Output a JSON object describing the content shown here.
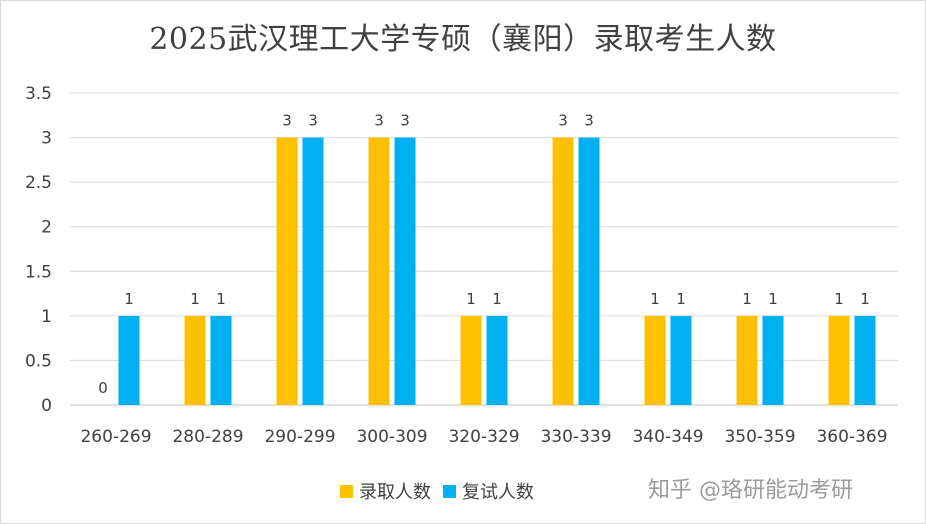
{
  "chart_data": {
    "type": "bar",
    "title": "2025武汉理工大学专硕（襄阳）录取考生人数",
    "categories": [
      "260-269",
      "280-289",
      "290-299",
      "300-309",
      "320-329",
      "330-339",
      "340-349",
      "350-359",
      "360-369"
    ],
    "series": [
      {
        "name": "录取人数",
        "color": "#FFC000",
        "values": [
          0,
          1,
          3,
          3,
          1,
          3,
          1,
          1,
          1
        ]
      },
      {
        "name": "复试人数",
        "color": "#00B0F0",
        "values": [
          1,
          1,
          3,
          3,
          1,
          3,
          1,
          1,
          1
        ]
      }
    ],
    "ylim": [
      0,
      3.5
    ],
    "yticks": [
      "0",
      "0.5",
      "1",
      "1.5",
      "2",
      "2.5",
      "3",
      "3.5"
    ],
    "ytick_values": [
      0,
      0.5,
      1,
      1.5,
      2,
      2.5,
      3,
      3.5
    ],
    "grid": true,
    "legend_position": "bottom"
  },
  "watermark": "知乎 @珞研能动考研"
}
